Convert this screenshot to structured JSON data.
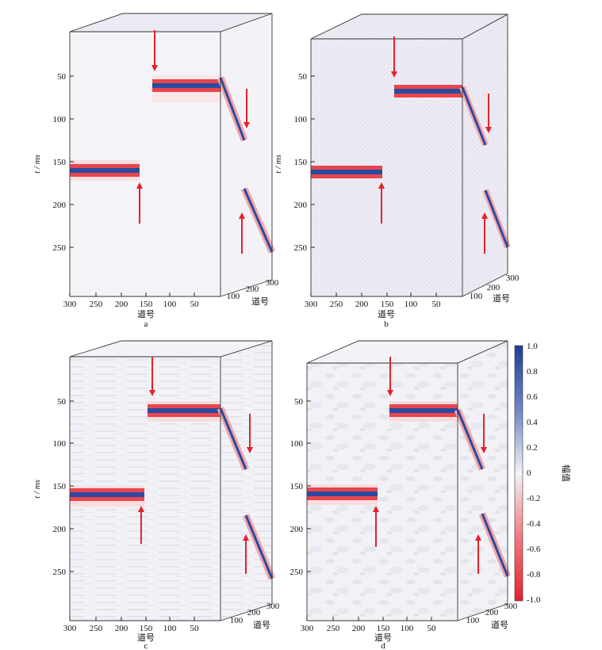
{
  "panels": [
    {
      "id": "a",
      "caption": "a",
      "noise": "clean"
    },
    {
      "id": "b",
      "caption": "b",
      "noise": "noisy"
    },
    {
      "id": "c",
      "caption": "c",
      "noise": "striped"
    },
    {
      "id": "d",
      "caption": "d",
      "noise": "patchy"
    }
  ],
  "axes": {
    "y_label": "t / ms",
    "y_ticks": [
      "50",
      "100",
      "150",
      "200",
      "250"
    ],
    "x_label": "道号",
    "x_ticks": [
      "300",
      "250",
      "200",
      "150",
      "100",
      "50"
    ],
    "depth_ticks": [
      "100",
      "200",
      "300"
    ],
    "depth_label": "道号"
  },
  "colorbar": {
    "label": "幅值",
    "ticks": [
      "1.0",
      "0.8",
      "0.6",
      "0.4",
      "0.2",
      "0",
      "-0.2",
      "-0.4",
      "-0.6",
      "-0.8",
      "-1.0"
    ],
    "colors": {
      "positive": "#1f3f94",
      "zero": "#f3f3f6",
      "negative": "#e8202a"
    }
  },
  "colors": {
    "arrow": "#e8202a",
    "event_core": "#2a4aa0",
    "event_side": "#e8454d"
  }
}
